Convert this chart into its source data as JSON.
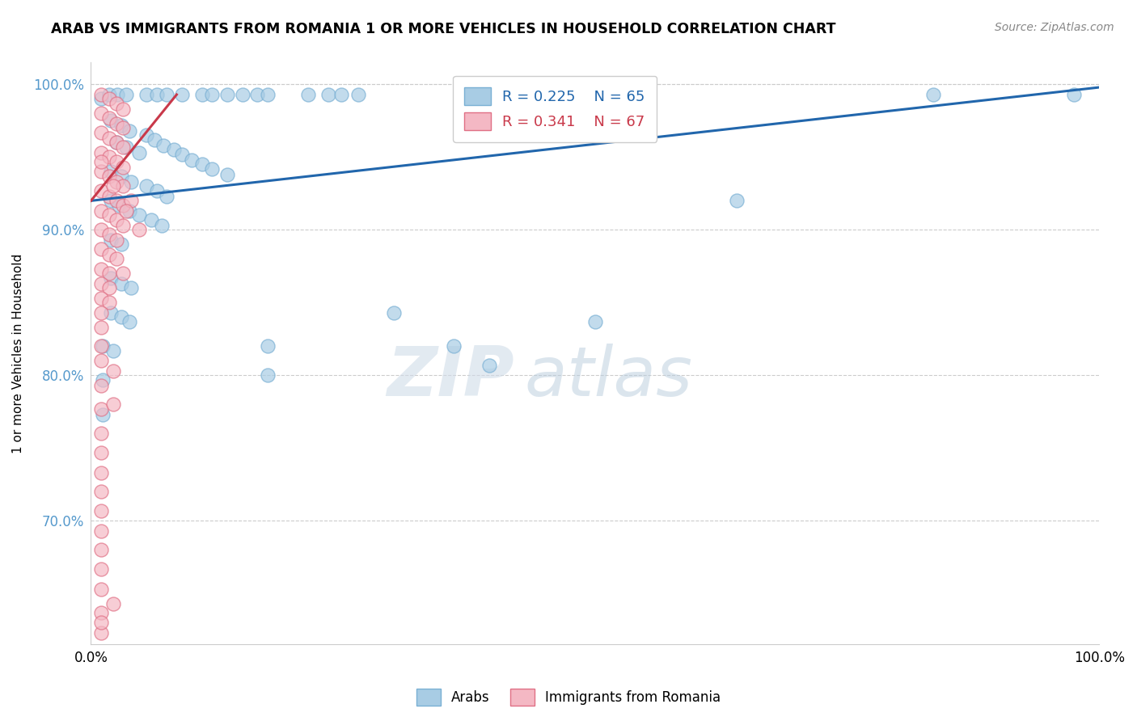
{
  "title": "ARAB VS IMMIGRANTS FROM ROMANIA 1 OR MORE VEHICLES IN HOUSEHOLD CORRELATION CHART",
  "source": "Source: ZipAtlas.com",
  "ylabel": "1 or more Vehicles in Household",
  "xlim": [
    0.0,
    1.0
  ],
  "ylim": [
    0.615,
    1.015
  ],
  "xticks": [
    0.0,
    0.25,
    0.5,
    0.75,
    1.0
  ],
  "xtick_labels": [
    "0.0%",
    "",
    "",
    "",
    "100.0%"
  ],
  "ytick_labels": [
    "70.0%",
    "80.0%",
    "90.0%",
    "100.0%"
  ],
  "yticks": [
    0.7,
    0.8,
    0.9,
    1.0
  ],
  "legend_r1": "R = 0.225",
  "legend_n1": "N = 65",
  "legend_r2": "R = 0.341",
  "legend_n2": "N = 67",
  "legend_label1": "Arabs",
  "legend_label2": "Immigrants from Romania",
  "blue_color": "#a8cce4",
  "pink_color": "#f4b8c4",
  "line_blue": "#2166ac",
  "line_pink": "#c9394a",
  "watermark_zip": "ZIP",
  "watermark_atlas": "atlas",
  "blue_points": [
    [
      0.01,
      0.99
    ],
    [
      0.018,
      0.993
    ],
    [
      0.026,
      0.993
    ],
    [
      0.035,
      0.993
    ],
    [
      0.055,
      0.993
    ],
    [
      0.065,
      0.993
    ],
    [
      0.075,
      0.993
    ],
    [
      0.09,
      0.993
    ],
    [
      0.11,
      0.993
    ],
    [
      0.12,
      0.993
    ],
    [
      0.135,
      0.993
    ],
    [
      0.15,
      0.993
    ],
    [
      0.165,
      0.993
    ],
    [
      0.175,
      0.993
    ],
    [
      0.215,
      0.993
    ],
    [
      0.235,
      0.993
    ],
    [
      0.248,
      0.993
    ],
    [
      0.265,
      0.993
    ],
    [
      0.02,
      0.975
    ],
    [
      0.03,
      0.972
    ],
    [
      0.038,
      0.968
    ],
    [
      0.055,
      0.965
    ],
    [
      0.063,
      0.962
    ],
    [
      0.072,
      0.958
    ],
    [
      0.082,
      0.955
    ],
    [
      0.09,
      0.952
    ],
    [
      0.1,
      0.948
    ],
    [
      0.11,
      0.945
    ],
    [
      0.12,
      0.942
    ],
    [
      0.135,
      0.938
    ],
    [
      0.025,
      0.96
    ],
    [
      0.035,
      0.957
    ],
    [
      0.048,
      0.953
    ],
    [
      0.02,
      0.94
    ],
    [
      0.03,
      0.937
    ],
    [
      0.04,
      0.933
    ],
    [
      0.055,
      0.93
    ],
    [
      0.065,
      0.927
    ],
    [
      0.075,
      0.923
    ],
    [
      0.02,
      0.92
    ],
    [
      0.028,
      0.917
    ],
    [
      0.038,
      0.913
    ],
    [
      0.048,
      0.91
    ],
    [
      0.06,
      0.907
    ],
    [
      0.07,
      0.903
    ],
    [
      0.02,
      0.893
    ],
    [
      0.03,
      0.89
    ],
    [
      0.02,
      0.867
    ],
    [
      0.03,
      0.863
    ],
    [
      0.04,
      0.86
    ],
    [
      0.02,
      0.843
    ],
    [
      0.03,
      0.84
    ],
    [
      0.038,
      0.837
    ],
    [
      0.012,
      0.82
    ],
    [
      0.022,
      0.817
    ],
    [
      0.012,
      0.797
    ],
    [
      0.012,
      0.773
    ],
    [
      0.175,
      0.82
    ],
    [
      0.175,
      0.8
    ],
    [
      0.3,
      0.843
    ],
    [
      0.36,
      0.82
    ],
    [
      0.5,
      0.837
    ],
    [
      0.395,
      0.807
    ],
    [
      0.64,
      0.92
    ],
    [
      0.835,
      0.993
    ],
    [
      0.975,
      0.993
    ]
  ],
  "pink_points": [
    [
      0.01,
      0.993
    ],
    [
      0.018,
      0.99
    ],
    [
      0.025,
      0.987
    ],
    [
      0.032,
      0.983
    ],
    [
      0.01,
      0.98
    ],
    [
      0.018,
      0.977
    ],
    [
      0.025,
      0.973
    ],
    [
      0.032,
      0.97
    ],
    [
      0.01,
      0.967
    ],
    [
      0.018,
      0.963
    ],
    [
      0.025,
      0.96
    ],
    [
      0.032,
      0.957
    ],
    [
      0.01,
      0.953
    ],
    [
      0.018,
      0.95
    ],
    [
      0.025,
      0.947
    ],
    [
      0.032,
      0.943
    ],
    [
      0.01,
      0.94
    ],
    [
      0.018,
      0.937
    ],
    [
      0.025,
      0.933
    ],
    [
      0.032,
      0.93
    ],
    [
      0.01,
      0.927
    ],
    [
      0.018,
      0.923
    ],
    [
      0.025,
      0.92
    ],
    [
      0.032,
      0.917
    ],
    [
      0.01,
      0.913
    ],
    [
      0.018,
      0.91
    ],
    [
      0.025,
      0.907
    ],
    [
      0.032,
      0.903
    ],
    [
      0.01,
      0.9
    ],
    [
      0.018,
      0.897
    ],
    [
      0.025,
      0.893
    ],
    [
      0.01,
      0.887
    ],
    [
      0.018,
      0.883
    ],
    [
      0.025,
      0.88
    ],
    [
      0.01,
      0.873
    ],
    [
      0.018,
      0.87
    ],
    [
      0.01,
      0.863
    ],
    [
      0.018,
      0.86
    ],
    [
      0.01,
      0.853
    ],
    [
      0.018,
      0.85
    ],
    [
      0.01,
      0.843
    ],
    [
      0.01,
      0.833
    ],
    [
      0.01,
      0.82
    ],
    [
      0.01,
      0.81
    ],
    [
      0.04,
      0.92
    ],
    [
      0.048,
      0.9
    ],
    [
      0.022,
      0.803
    ],
    [
      0.01,
      0.793
    ],
    [
      0.01,
      0.777
    ],
    [
      0.01,
      0.76
    ],
    [
      0.01,
      0.747
    ],
    [
      0.01,
      0.733
    ],
    [
      0.01,
      0.72
    ],
    [
      0.01,
      0.707
    ],
    [
      0.01,
      0.693
    ],
    [
      0.01,
      0.68
    ],
    [
      0.01,
      0.667
    ],
    [
      0.01,
      0.653
    ],
    [
      0.01,
      0.637
    ],
    [
      0.01,
      0.623
    ],
    [
      0.022,
      0.643
    ],
    [
      0.01,
      0.63
    ],
    [
      0.022,
      0.78
    ],
    [
      0.032,
      0.87
    ],
    [
      0.035,
      0.913
    ],
    [
      0.022,
      0.93
    ],
    [
      0.01,
      0.947
    ]
  ]
}
